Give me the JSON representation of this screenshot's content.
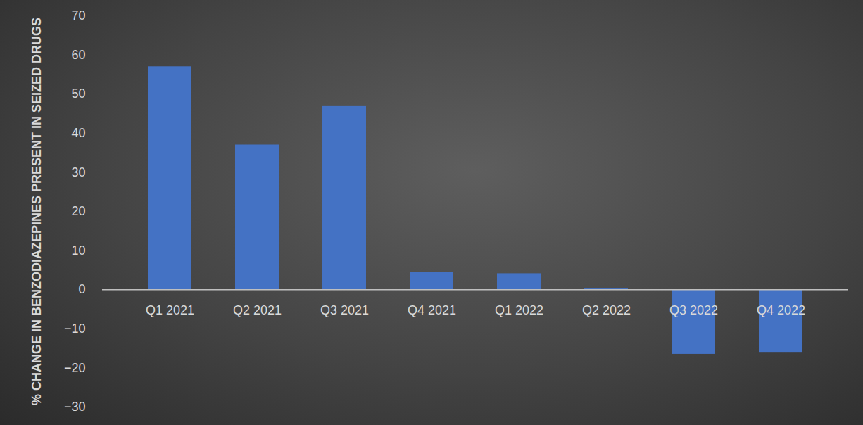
{
  "chart_data": {
    "type": "bar",
    "y_label": "% CHANGE IN BENZODIAZEPINES PRESENT IN SEIZED DRUGS",
    "categories": [
      "Q1 2021",
      "Q2 2021",
      "Q3 2021",
      "Q4 2021",
      "Q1 2022",
      "Q2 2022",
      "Q3 2022",
      "Q4 2022"
    ],
    "values": [
      57,
      37,
      47,
      4.5,
      4.1,
      0.2,
      -16.5,
      -16
    ],
    "color": "#4472c4",
    "ylim": [
      -30,
      70
    ],
    "yticks": [
      -30,
      -20,
      -10,
      0,
      10,
      20,
      30,
      40,
      50,
      60,
      70
    ],
    "grid": false
  }
}
